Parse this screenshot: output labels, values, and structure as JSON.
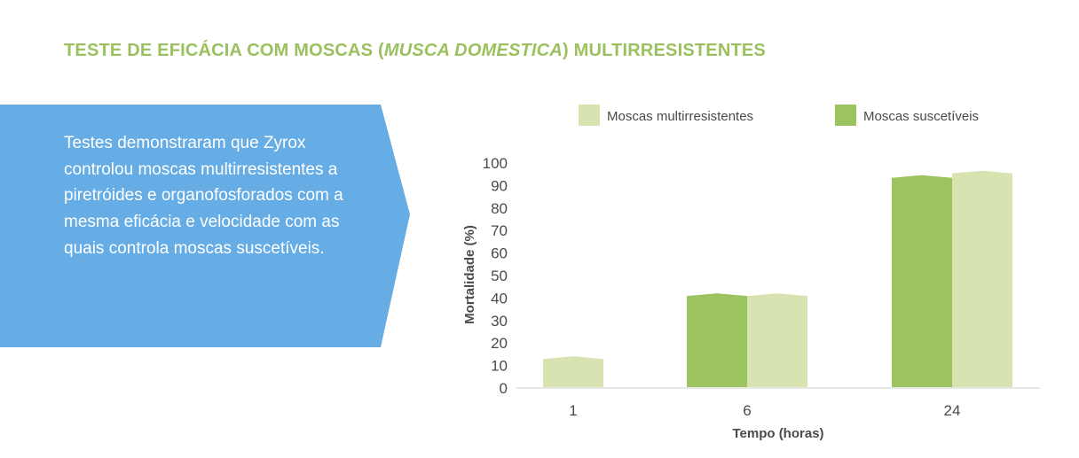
{
  "header": {
    "title_prefix": "TESTE DE EFICÁCIA COM MOSCAS (",
    "title_italic": "MUSCA DOMESTICA",
    "title_suffix": ") MULTIRRESISTENTES"
  },
  "banner": {
    "text": "Testes demonstraram que Zyrox controlou moscas multirresistentes a piretróides e organofosforados com a mesma eficácia e velocidade com as quais controla moscas suscetíveis."
  },
  "colors": {
    "title": "#9bc15e",
    "banner_bg": "#66ace5",
    "series_light": "#d8e3b2",
    "series_dark": "#9bc35f",
    "axis_text": "#4a4a4a",
    "axis_line": "#cfcfcf"
  },
  "chart_data": {
    "type": "bar",
    "xlabel": "Tempo (horas)",
    "ylabel": "Mortalidade (%)",
    "ylim": [
      0,
      100
    ],
    "yticks": [
      0,
      10,
      20,
      30,
      40,
      50,
      60,
      70,
      80,
      90,
      100
    ],
    "categories": [
      "1",
      "6",
      "24"
    ],
    "legend_position": "top",
    "grid": false,
    "series": [
      {
        "name": "Moscas multirresistentes",
        "values": [
          12.5,
          40.5,
          95
        ],
        "color": "#d8e3b2"
      },
      {
        "name": "Moscas suscetíveis",
        "values": [
          0,
          40.5,
          93
        ],
        "color": "#9bc35f"
      }
    ]
  }
}
